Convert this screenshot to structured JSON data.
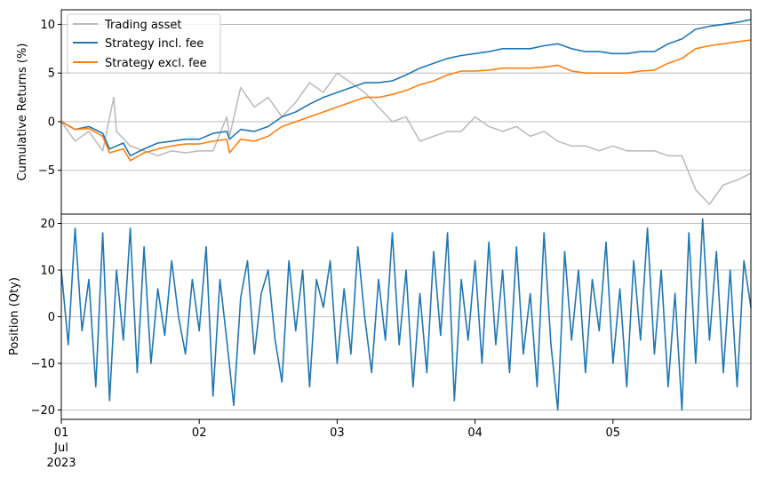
{
  "chart_data": [
    {
      "type": "line",
      "ylabel": "Cumulative Returns (%)",
      "ylim": [
        -9.5,
        11.5
      ],
      "yticks": [
        -5,
        0,
        5,
        10
      ],
      "xlim": [
        0,
        5
      ],
      "grid": "y",
      "legend": "top-left",
      "series": [
        {
          "name": "Trading asset",
          "color": "#bdbdbd",
          "x": [
            0,
            0.1,
            0.2,
            0.3,
            0.38,
            0.4,
            0.5,
            0.6,
            0.7,
            0.8,
            0.9,
            1.0,
            1.1,
            1.2,
            1.22,
            1.3,
            1.4,
            1.5,
            1.6,
            1.7,
            1.8,
            1.9,
            2.0,
            2.1,
            2.2,
            2.3,
            2.4,
            2.5,
            2.6,
            2.7,
            2.8,
            2.9,
            3.0,
            3.1,
            3.2,
            3.3,
            3.4,
            3.5,
            3.6,
            3.7,
            3.8,
            3.9,
            4.0,
            4.1,
            4.2,
            4.3,
            4.4,
            4.5,
            4.6,
            4.7,
            4.8,
            4.9,
            5.0
          ],
          "y": [
            0,
            -2.0,
            -1.0,
            -3.0,
            2.5,
            -1.0,
            -2.5,
            -3.0,
            -3.5,
            -3.0,
            -3.2,
            -3.0,
            -3.0,
            0.5,
            -1.5,
            3.5,
            1.5,
            2.5,
            0.5,
            2.0,
            4.0,
            3.0,
            5.0,
            4.0,
            3.0,
            1.5,
            0.0,
            0.5,
            -2.0,
            -1.5,
            -1.0,
            -1.0,
            0.5,
            -0.5,
            -1.0,
            -0.5,
            -1.5,
            -1.0,
            -2.0,
            -2.5,
            -2.5,
            -3.0,
            -2.5,
            -3.0,
            -3.0,
            -3.0,
            -3.5,
            -3.5,
            -7.0,
            -8.5,
            -6.5,
            -6.0,
            -5.3
          ]
        },
        {
          "name": "Strategy incl. fee",
          "color": "#1f77b4",
          "x": [
            0,
            0.1,
            0.2,
            0.3,
            0.35,
            0.45,
            0.5,
            0.6,
            0.7,
            0.8,
            0.9,
            1.0,
            1.1,
            1.2,
            1.22,
            1.3,
            1.4,
            1.5,
            1.6,
            1.7,
            1.8,
            1.9,
            2.0,
            2.1,
            2.2,
            2.3,
            2.4,
            2.5,
            2.6,
            2.7,
            2.8,
            2.9,
            3.0,
            3.1,
            3.2,
            3.3,
            3.4,
            3.5,
            3.6,
            3.7,
            3.8,
            3.9,
            4.0,
            4.1,
            4.2,
            4.3,
            4.4,
            4.5,
            4.6,
            4.7,
            4.8,
            4.9,
            5.0
          ],
          "y": [
            0,
            -0.8,
            -0.5,
            -1.2,
            -2.8,
            -2.2,
            -3.5,
            -2.8,
            -2.2,
            -2.0,
            -1.8,
            -1.8,
            -1.2,
            -1.0,
            -1.8,
            -0.8,
            -1.0,
            -0.5,
            0.5,
            1.0,
            1.8,
            2.5,
            3.0,
            3.5,
            4.0,
            4.0,
            4.2,
            4.8,
            5.5,
            6.0,
            6.5,
            6.8,
            7.0,
            7.2,
            7.5,
            7.5,
            7.5,
            7.8,
            8.0,
            7.5,
            7.2,
            7.2,
            7.0,
            7.0,
            7.2,
            7.2,
            8.0,
            8.5,
            9.5,
            9.8,
            10.0,
            10.2,
            10.5
          ]
        },
        {
          "name": "Strategy excl. fee",
          "color": "#ff7f0e",
          "x": [
            0,
            0.1,
            0.2,
            0.3,
            0.35,
            0.45,
            0.5,
            0.6,
            0.7,
            0.8,
            0.9,
            1.0,
            1.1,
            1.2,
            1.22,
            1.3,
            1.4,
            1.5,
            1.6,
            1.7,
            1.8,
            1.9,
            2.0,
            2.1,
            2.2,
            2.3,
            2.4,
            2.5,
            2.6,
            2.7,
            2.8,
            2.9,
            3.0,
            3.1,
            3.2,
            3.3,
            3.4,
            3.5,
            3.6,
            3.7,
            3.8,
            3.9,
            4.0,
            4.1,
            4.2,
            4.3,
            4.4,
            4.5,
            4.6,
            4.7,
            4.8,
            4.9,
            5.0
          ],
          "y": [
            0,
            -0.8,
            -0.7,
            -1.5,
            -3.2,
            -2.8,
            -4.0,
            -3.2,
            -2.8,
            -2.5,
            -2.3,
            -2.3,
            -2.0,
            -1.8,
            -3.2,
            -1.8,
            -2.0,
            -1.5,
            -0.5,
            0.0,
            0.5,
            1.0,
            1.5,
            2.0,
            2.5,
            2.5,
            2.8,
            3.2,
            3.8,
            4.2,
            4.8,
            5.2,
            5.2,
            5.3,
            5.5,
            5.5,
            5.5,
            5.6,
            5.8,
            5.2,
            5.0,
            5.0,
            5.0,
            5.0,
            5.2,
            5.3,
            6.0,
            6.5,
            7.5,
            7.8,
            8.0,
            8.2,
            8.4
          ]
        }
      ]
    },
    {
      "type": "line",
      "ylabel": "Position (Qty)",
      "ylim": [
        -22,
        22
      ],
      "yticks": [
        -20,
        -10,
        0,
        10,
        20
      ],
      "xlim": [
        0,
        5
      ],
      "grid": "y",
      "series": [
        {
          "color": "#1f77b4",
          "x": [
            0,
            0.05,
            0.1,
            0.15,
            0.2,
            0.25,
            0.3,
            0.35,
            0.4,
            0.45,
            0.5,
            0.55,
            0.6,
            0.65,
            0.7,
            0.75,
            0.8,
            0.85,
            0.9,
            0.95,
            1.0,
            1.05,
            1.1,
            1.15,
            1.2,
            1.25,
            1.3,
            1.35,
            1.4,
            1.45,
            1.5,
            1.55,
            1.6,
            1.65,
            1.7,
            1.75,
            1.8,
            1.85,
            1.9,
            1.95,
            2.0,
            2.05,
            2.1,
            2.15,
            2.2,
            2.25,
            2.3,
            2.35,
            2.4,
            2.45,
            2.5,
            2.55,
            2.6,
            2.65,
            2.7,
            2.75,
            2.8,
            2.85,
            2.9,
            2.95,
            3.0,
            3.05,
            3.1,
            3.15,
            3.2,
            3.25,
            3.3,
            3.35,
            3.4,
            3.45,
            3.5,
            3.55,
            3.6,
            3.65,
            3.7,
            3.75,
            3.8,
            3.85,
            3.9,
            3.95,
            4.0,
            4.05,
            4.1,
            4.15,
            4.2,
            4.25,
            4.3,
            4.35,
            4.4,
            4.45,
            4.5,
            4.55,
            4.6,
            4.65,
            4.7,
            4.75,
            4.8,
            4.85,
            4.9,
            4.95,
            5.0
          ],
          "y": [
            10,
            -6,
            19,
            -3,
            8,
            -15,
            18,
            -18,
            10,
            -5,
            19,
            -12,
            15,
            -10,
            6,
            -4,
            12,
            0,
            -8,
            8,
            -3,
            15,
            -17,
            8,
            -5,
            -19,
            4,
            12,
            -8,
            5,
            10,
            -5,
            -14,
            12,
            -3,
            10,
            -15,
            8,
            2,
            12,
            -10,
            6,
            -8,
            15,
            0,
            -12,
            8,
            -5,
            18,
            -6,
            10,
            -15,
            5,
            -12,
            14,
            -4,
            18,
            -18,
            8,
            -5,
            12,
            -10,
            16,
            -6,
            10,
            -12,
            15,
            -8,
            5,
            -15,
            18,
            -6,
            -20,
            14,
            -5,
            10,
            -12,
            8,
            -3,
            16,
            -10,
            6,
            -15,
            12,
            -5,
            19,
            -8,
            10,
            -15,
            5,
            -20,
            18,
            -10,
            21,
            -5,
            14,
            -12,
            10,
            -15,
            12,
            2
          ]
        }
      ]
    }
  ],
  "xaxis": {
    "ticks": [
      {
        "value": 0,
        "label": "01"
      },
      {
        "value": 1,
        "label": "02"
      },
      {
        "value": 2,
        "label": "03"
      },
      {
        "value": 3,
        "label": "04"
      },
      {
        "value": 4,
        "label": "05"
      }
    ],
    "month_label": "Jul",
    "year_label": "2023"
  }
}
